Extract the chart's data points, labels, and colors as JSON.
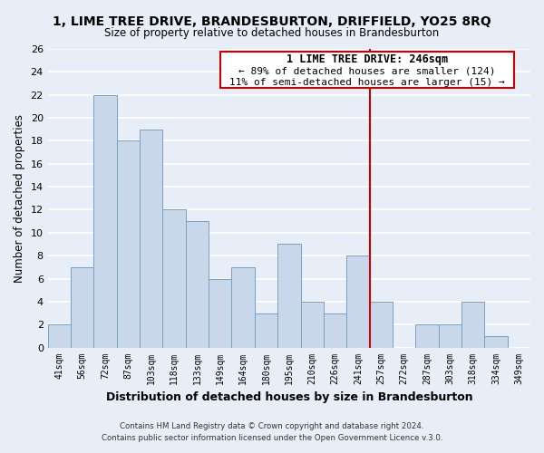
{
  "title": "1, LIME TREE DRIVE, BRANDESBURTON, DRIFFIELD, YO25 8RQ",
  "subtitle": "Size of property relative to detached houses in Brandesburton",
  "xlabel": "Distribution of detached houses by size in Brandesburton",
  "ylabel": "Number of detached properties",
  "bin_labels": [
    "41sqm",
    "56sqm",
    "72sqm",
    "87sqm",
    "103sqm",
    "118sqm",
    "133sqm",
    "149sqm",
    "164sqm",
    "180sqm",
    "195sqm",
    "210sqm",
    "226sqm",
    "241sqm",
    "257sqm",
    "272sqm",
    "287sqm",
    "303sqm",
    "318sqm",
    "334sqm",
    "349sqm"
  ],
  "bar_values": [
    2,
    7,
    22,
    18,
    19,
    12,
    11,
    6,
    7,
    3,
    9,
    4,
    3,
    8,
    4,
    0,
    2,
    2,
    4,
    1,
    0
  ],
  "bar_color": "#c8d8ea",
  "bar_edge_color": "#7aa0c0",
  "vline_x": 13.5,
  "vline_color": "#cc0000",
  "ylim": [
    0,
    26
  ],
  "yticks": [
    0,
    2,
    4,
    6,
    8,
    10,
    12,
    14,
    16,
    18,
    20,
    22,
    24,
    26
  ],
  "annotation_title": "1 LIME TREE DRIVE: 246sqm",
  "annotation_line1": "← 89% of detached houses are smaller (124)",
  "annotation_line2": "11% of semi-detached houses are larger (15) →",
  "annotation_box_color": "#ffffff",
  "annotation_border_color": "#cc0000",
  "bg_color": "#e8eef8",
  "footer1": "Contains HM Land Registry data © Crown copyright and database right 2024.",
  "footer2": "Contains public sector information licensed under the Open Government Licence v.3.0."
}
